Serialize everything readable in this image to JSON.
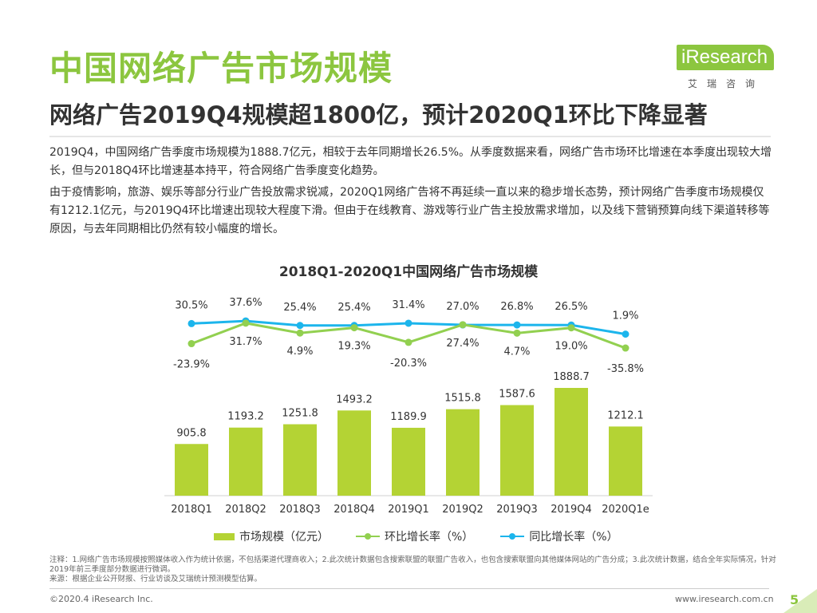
{
  "header": {
    "title": "中国网络广告市场规模",
    "subtitle": "网络广告2019Q4规模超1800亿，预计2020Q1环比下降显著"
  },
  "logo": {
    "word": "iResearch",
    "cn": "艾瑞咨询"
  },
  "body": {
    "paragraph1": "2019Q4，中国网络广告季度市场规模为1888.7亿元，相较于去年同期增长26.5%。从季度数据来看，网络广告市场环比增速在本季度出现较大增长，但与2018Q4环比增速基本持平，符合网络广告季度变化趋势。",
    "paragraph2": "由于疫情影响，旅游、娱乐等部分行业广告投放需求锐减，2020Q1网络广告将不再延续一直以来的稳步增长态势，预计网络广告季度市场规模仅有1212.1亿元，与2019Q4环比增速出现较大程度下滑。但由于在线教育、游戏等行业广告主投放需求增加，以及线下营销预算向线下渠道转移等原因，与去年同期相比仍然有较小幅度的增长。"
  },
  "chart_data": {
    "type": "bar",
    "title": "2018Q1-2020Q1中国网络广告市场规模",
    "categories": [
      "2018Q1",
      "2018Q2",
      "2018Q3",
      "2018Q4",
      "2019Q1",
      "2019Q2",
      "2019Q3",
      "2019Q4",
      "2020Q1e"
    ],
    "series": [
      {
        "name": "市场规模（亿元）",
        "kind": "bar",
        "color": "#b4d334",
        "values": [
          905.8,
          1193.2,
          1251.8,
          1493.2,
          1189.9,
          1515.8,
          1587.6,
          1888.7,
          1212.1
        ],
        "labels": [
          "905.8",
          "1193.2",
          "1251.8",
          "1493.2",
          "1189.9",
          "1515.8",
          "1587.6",
          "1888.7",
          "1212.1"
        ]
      },
      {
        "name": "环比增长率（%）",
        "kind": "line",
        "color": "#92d050",
        "values": [
          -23.9,
          31.7,
          4.9,
          19.3,
          -20.3,
          27.4,
          4.7,
          19.0,
          -35.8
        ],
        "labels": [
          "-23.9%",
          "31.7%",
          "4.9%",
          "19.3%",
          "-20.3%",
          "27.4%",
          "4.7%",
          "19.0%",
          "-35.8%"
        ]
      },
      {
        "name": "同比增长率（%）",
        "kind": "line",
        "color": "#1cb5ec",
        "values": [
          30.5,
          37.6,
          25.4,
          25.4,
          31.4,
          27.0,
          26.8,
          26.5,
          1.9
        ],
        "labels": [
          "30.5%",
          "37.6%",
          "25.4%",
          "25.4%",
          "31.4%",
          "27.0%",
          "26.8%",
          "26.5%",
          "1.9%"
        ]
      }
    ],
    "legend_position": "bottom"
  },
  "notes": {
    "line1": "注释：1.网络广告市场规模按照媒体收入作为统计依据，不包括渠道代理商收入；2.此次统计数据包含搜索联盟的联盟广告收入，也包含搜索联盟向其他媒体网站的广告分成；3.此次统计数据，结合全年实际情况，针对2019年前三季度部分数据进行微调。",
    "line2": "来源：根据企业公开财报、行业访谈及艾瑞统计预测模型估算。"
  },
  "footer": {
    "copyright": "©2020.4 iResearch Inc.",
    "website": "www.iresearch.com.cn",
    "page": "5"
  }
}
